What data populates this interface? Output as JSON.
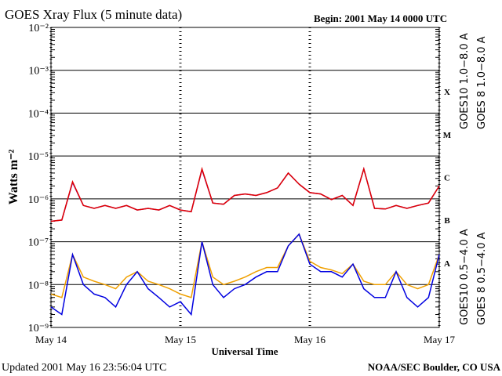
{
  "chart_data": {
    "type": "line",
    "title": "GOES Xray Flux (5 minute data)",
    "subtitle": "Begin:  2001 May 14 0000 UTC",
    "ylabel": "Watts m⁻²",
    "xlabel": "Universal Time",
    "footer_left": "Updated 2001 May 16 23:56:04 UTC",
    "footer_right": "NOAA/SEC Boulder, CO USA",
    "log_y": true,
    "grid": true,
    "ylim": [
      1e-09,
      0.01
    ],
    "yticks": [
      {
        "value": 1e-09,
        "label": "10⁻⁹"
      },
      {
        "value": 1e-08,
        "label": "10⁻⁸"
      },
      {
        "value": 1e-07,
        "label": "10⁻⁷"
      },
      {
        "value": 1e-06,
        "label": "10⁻⁶"
      },
      {
        "value": 1e-05,
        "label": "10⁻⁵"
      },
      {
        "value": 0.0001,
        "label": "10⁻⁴"
      },
      {
        "value": 0.001,
        "label": "10⁻³"
      },
      {
        "value": 0.01,
        "label": "10⁻²"
      }
    ],
    "xlim": [
      0,
      72
    ],
    "xticks": [
      {
        "value": 0,
        "label": "May 14"
      },
      {
        "value": 24,
        "label": "May 15"
      },
      {
        "value": 48,
        "label": "May 16"
      },
      {
        "value": 72,
        "label": "May 17"
      }
    ],
    "flare_classes": [
      "X",
      "M",
      "C",
      "B",
      "A"
    ],
    "x": [
      0,
      2,
      4,
      6,
      8,
      10,
      12,
      14,
      16,
      18,
      20,
      22,
      24,
      26,
      28,
      30,
      32,
      34,
      36,
      38,
      40,
      42,
      44,
      46,
      48,
      50,
      52,
      54,
      56,
      58,
      60,
      62,
      64,
      66,
      68,
      70,
      72
    ],
    "series": [
      {
        "name": "GOES10 1.0−8.0 A",
        "color": "#8020c0",
        "values": [
          3e-07,
          3.2e-07,
          2.4e-06,
          7e-07,
          6e-07,
          7e-07,
          6e-07,
          7e-07,
          5.5e-07,
          6e-07,
          5.5e-07,
          7e-07,
          5.5e-07,
          5e-07,
          4.8e-06,
          8e-07,
          7.5e-07,
          1.2e-06,
          1.3e-06,
          1.2e-06,
          1.4e-06,
          1.8e-06,
          4e-06,
          2.2e-06,
          1.4e-06,
          1.3e-06,
          9.6e-07,
          1.2e-06,
          7e-07,
          5e-06,
          6e-07,
          5.8e-07,
          7e-07,
          6e-07,
          7e-07,
          8e-07,
          2e-06
        ]
      },
      {
        "name": "GOES 8 1.0−8.0 A",
        "color": "#e00000",
        "values": [
          3e-07,
          3.2e-07,
          2.5e-06,
          7e-07,
          6e-07,
          7e-07,
          6e-07,
          7e-07,
          5.5e-07,
          6e-07,
          5.5e-07,
          7e-07,
          5.5e-07,
          5e-07,
          5e-06,
          8e-07,
          7.5e-07,
          1.2e-06,
          1.3e-06,
          1.2e-06,
          1.4e-06,
          1.8e-06,
          4e-06,
          2.2e-06,
          1.4e-06,
          1.3e-06,
          9.6e-07,
          1.2e-06,
          7e-07,
          5e-06,
          6e-07,
          5.8e-07,
          7e-07,
          6e-07,
          7e-07,
          8e-07,
          2e-06
        ]
      },
      {
        "name": "GOES10 0.5−4.0 A",
        "color": "#f0a000",
        "values": [
          6e-09,
          5e-09,
          5e-08,
          1.5e-08,
          1.2e-08,
          1e-08,
          8e-09,
          1.5e-08,
          2e-08,
          1.2e-08,
          1e-08,
          8e-09,
          6e-09,
          5e-09,
          1e-07,
          1.5e-08,
          1e-08,
          1.2e-08,
          1.5e-08,
          2e-08,
          2.5e-08,
          2.5e-08,
          8e-08,
          1.5e-07,
          3.5e-08,
          2.5e-08,
          2.2e-08,
          1.8e-08,
          3e-08,
          1.2e-08,
          1e-08,
          1e-08,
          2e-08,
          1e-08,
          8e-09,
          1e-08,
          5e-08
        ]
      },
      {
        "name": "GOES 8 0.5−4.0 A",
        "color": "#0000e0",
        "values": [
          3e-09,
          2e-09,
          5e-08,
          1e-08,
          6e-09,
          5e-09,
          3e-09,
          1e-08,
          2e-08,
          8e-09,
          5e-09,
          3e-09,
          4e-09,
          2e-09,
          1e-07,
          1e-08,
          5e-09,
          8e-09,
          1e-08,
          1.5e-08,
          2e-08,
          2e-08,
          8e-08,
          1.5e-07,
          3e-08,
          2e-08,
          2e-08,
          1.5e-08,
          3e-08,
          8e-09,
          5e-09,
          5e-09,
          2e-08,
          5e-09,
          3e-09,
          5e-09,
          5e-08
        ]
      }
    ]
  }
}
